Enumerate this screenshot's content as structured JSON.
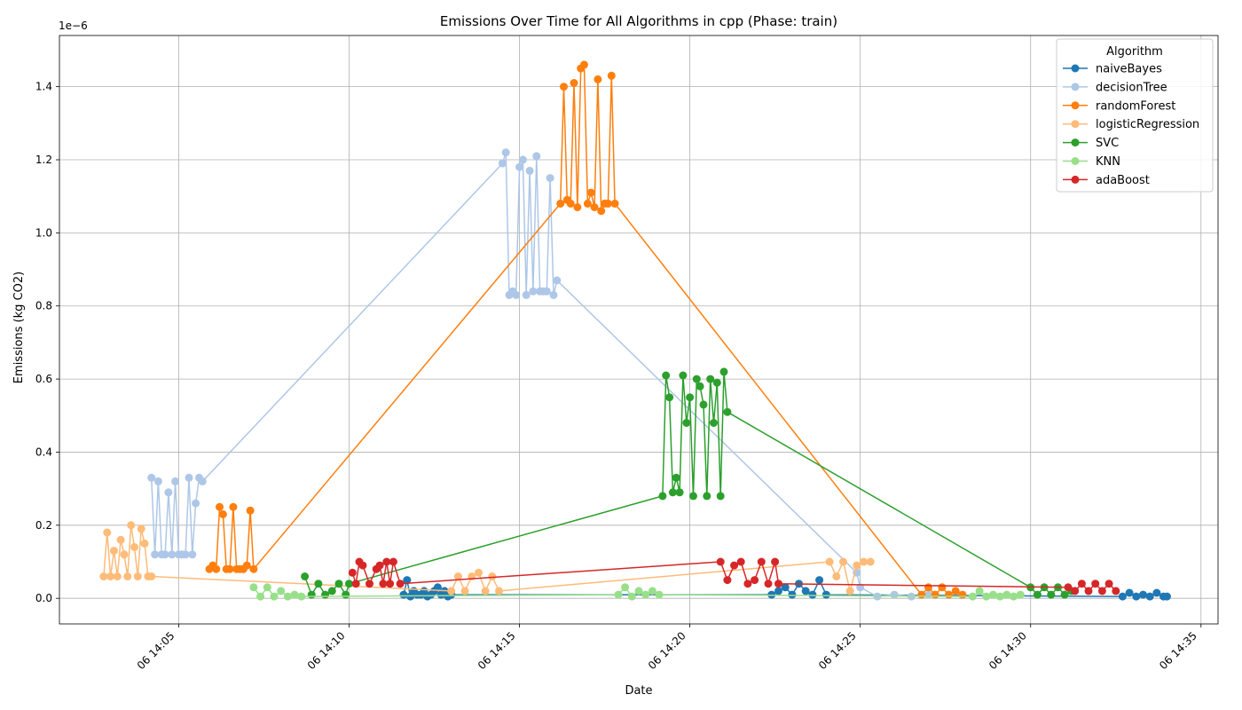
{
  "chart_data": {
    "type": "line",
    "title": "Emissions Over Time for All Algorithms in cpp (Phase: train)",
    "xlabel": "Date",
    "ylabel": "Emissions (kg CO2)",
    "y_multiplier_label": "1e−6",
    "y_unit_scale": 1e-06,
    "xlim": [
      "06 14:01:30",
      "06 14:35:30"
    ],
    "ylim": [
      -0.07,
      1.54
    ],
    "x_ticks": [
      {
        "time": "06 14:05",
        "label": "06 14:05"
      },
      {
        "time": "06 14:10",
        "label": "06 14:10"
      },
      {
        "time": "06 14:15",
        "label": "06 14:15"
      },
      {
        "time": "06 14:20",
        "label": "06 14:20"
      },
      {
        "time": "06 14:25",
        "label": "06 14:25"
      },
      {
        "time": "06 14:30",
        "label": "06 14:30"
      },
      {
        "time": "06 14:35",
        "label": "06 14:35"
      }
    ],
    "y_ticks": [
      0.0,
      0.2,
      0.4,
      0.6,
      0.8,
      1.0,
      1.2,
      1.4
    ],
    "y_tick_labels": [
      "0.0",
      "0.2",
      "0.4",
      "0.6",
      "0.8",
      "1.0",
      "1.2",
      "1.4"
    ],
    "grid": true,
    "legend": {
      "title": "Algorithm",
      "position": "top-right"
    },
    "series": [
      {
        "name": "naiveBayes",
        "color": "#1f77b4",
        "points": [
          [
            "06 14:11:36",
            0.01
          ],
          [
            "06 14:11:42",
            0.05
          ],
          [
            "06 14:11:48",
            0.005
          ],
          [
            "06 14:11:54",
            0.02
          ],
          [
            "06 14:12:00",
            0.01
          ],
          [
            "06 14:12:06",
            0.01
          ],
          [
            "06 14:12:12",
            0.02
          ],
          [
            "06 14:12:18",
            0.005
          ],
          [
            "06 14:12:24",
            0.01
          ],
          [
            "06 14:12:30",
            0.02
          ],
          [
            "06 14:12:36",
            0.03
          ],
          [
            "06 14:12:42",
            0.01
          ],
          [
            "06 14:12:48",
            0.02
          ],
          [
            "06 14:12:54",
            0.005
          ],
          [
            "06 14:13:00",
            0.01
          ],
          [
            "06 14:22:24",
            0.01
          ],
          [
            "06 14:22:36",
            0.02
          ],
          [
            "06 14:22:48",
            0.03
          ],
          [
            "06 14:23:00",
            0.01
          ],
          [
            "06 14:23:12",
            0.04
          ],
          [
            "06 14:23:24",
            0.02
          ],
          [
            "06 14:23:36",
            0.01
          ],
          [
            "06 14:23:48",
            0.05
          ],
          [
            "06 14:24:00",
            0.01
          ],
          [
            "06 14:32:42",
            0.005
          ],
          [
            "06 14:32:54",
            0.015
          ],
          [
            "06 14:33:06",
            0.005
          ],
          [
            "06 14:33:18",
            0.01
          ],
          [
            "06 14:33:30",
            0.005
          ],
          [
            "06 14:33:42",
            0.015
          ],
          [
            "06 14:33:54",
            0.005
          ],
          [
            "06 14:34:00",
            0.005
          ]
        ]
      },
      {
        "name": "decisionTree",
        "color": "#aec7e8",
        "points": [
          [
            "06 14:04:12",
            0.33
          ],
          [
            "06 14:04:18",
            0.12
          ],
          [
            "06 14:04:24",
            0.32
          ],
          [
            "06 14:04:30",
            0.12
          ],
          [
            "06 14:04:36",
            0.12
          ],
          [
            "06 14:04:42",
            0.29
          ],
          [
            "06 14:04:48",
            0.12
          ],
          [
            "06 14:04:54",
            0.32
          ],
          [
            "06 14:05:00",
            0.12
          ],
          [
            "06 14:05:06",
            0.12
          ],
          [
            "06 14:05:12",
            0.12
          ],
          [
            "06 14:05:18",
            0.33
          ],
          [
            "06 14:05:24",
            0.12
          ],
          [
            "06 14:05:30",
            0.26
          ],
          [
            "06 14:05:36",
            0.33
          ],
          [
            "06 14:05:42",
            0.32
          ],
          [
            "06 14:14:30",
            1.19
          ],
          [
            "06 14:14:36",
            1.22
          ],
          [
            "06 14:14:42",
            0.83
          ],
          [
            "06 14:14:48",
            0.84
          ],
          [
            "06 14:14:54",
            0.83
          ],
          [
            "06 14:15:00",
            1.18
          ],
          [
            "06 14:15:06",
            1.2
          ],
          [
            "06 14:15:12",
            0.83
          ],
          [
            "06 14:15:18",
            1.17
          ],
          [
            "06 14:15:24",
            0.84
          ],
          [
            "06 14:15:30",
            1.21
          ],
          [
            "06 14:15:36",
            0.84
          ],
          [
            "06 14:15:42",
            0.84
          ],
          [
            "06 14:15:48",
            0.84
          ],
          [
            "06 14:15:54",
            1.15
          ],
          [
            "06 14:16:00",
            0.83
          ],
          [
            "06 14:16:06",
            0.87
          ],
          [
            "06 14:24:54",
            0.07
          ],
          [
            "06 14:25:00",
            0.03
          ],
          [
            "06 14:25:30",
            0.005
          ],
          [
            "06 14:26:00",
            0.01
          ],
          [
            "06 14:26:30",
            0.005
          ],
          [
            "06 14:27:00",
            0.01
          ]
        ]
      },
      {
        "name": "randomForest",
        "color": "#ff7f0e",
        "points": [
          [
            "06 14:05:54",
            0.08
          ],
          [
            "06 14:06:00",
            0.09
          ],
          [
            "06 14:06:06",
            0.08
          ],
          [
            "06 14:06:12",
            0.25
          ],
          [
            "06 14:06:18",
            0.23
          ],
          [
            "06 14:06:24",
            0.08
          ],
          [
            "06 14:06:30",
            0.08
          ],
          [
            "06 14:06:36",
            0.25
          ],
          [
            "06 14:06:42",
            0.08
          ],
          [
            "06 14:06:48",
            0.08
          ],
          [
            "06 14:06:54",
            0.08
          ],
          [
            "06 14:07:00",
            0.09
          ],
          [
            "06 14:07:06",
            0.24
          ],
          [
            "06 14:07:12",
            0.08
          ],
          [
            "06 14:16:12",
            1.08
          ],
          [
            "06 14:16:18",
            1.4
          ],
          [
            "06 14:16:24",
            1.09
          ],
          [
            "06 14:16:30",
            1.08
          ],
          [
            "06 14:16:36",
            1.41
          ],
          [
            "06 14:16:42",
            1.07
          ],
          [
            "06 14:16:48",
            1.45
          ],
          [
            "06 14:16:54",
            1.46
          ],
          [
            "06 14:17:00",
            1.08
          ],
          [
            "06 14:17:06",
            1.11
          ],
          [
            "06 14:17:12",
            1.07
          ],
          [
            "06 14:17:18",
            1.42
          ],
          [
            "06 14:17:24",
            1.06
          ],
          [
            "06 14:17:30",
            1.08
          ],
          [
            "06 14:17:36",
            1.08
          ],
          [
            "06 14:17:42",
            1.43
          ],
          [
            "06 14:17:48",
            1.08
          ],
          [
            "06 14:26:48",
            0.01
          ],
          [
            "06 14:27:00",
            0.03
          ],
          [
            "06 14:27:12",
            0.01
          ],
          [
            "06 14:27:24",
            0.03
          ],
          [
            "06 14:27:36",
            0.01
          ],
          [
            "06 14:27:48",
            0.02
          ],
          [
            "06 14:28:00",
            0.01
          ]
        ]
      },
      {
        "name": "logisticRegression",
        "color": "#ffbb78",
        "points": [
          [
            "06 14:02:48",
            0.06
          ],
          [
            "06 14:02:54",
            0.18
          ],
          [
            "06 14:03:00",
            0.06
          ],
          [
            "06 14:03:06",
            0.13
          ],
          [
            "06 14:03:12",
            0.06
          ],
          [
            "06 14:03:18",
            0.16
          ],
          [
            "06 14:03:24",
            0.12
          ],
          [
            "06 14:03:30",
            0.06
          ],
          [
            "06 14:03:36",
            0.2
          ],
          [
            "06 14:03:42",
            0.14
          ],
          [
            "06 14:03:48",
            0.06
          ],
          [
            "06 14:03:54",
            0.19
          ],
          [
            "06 14:04:00",
            0.15
          ],
          [
            "06 14:04:06",
            0.06
          ],
          [
            "06 14:04:12",
            0.06
          ],
          [
            "06 14:13:00",
            0.02
          ],
          [
            "06 14:13:12",
            0.06
          ],
          [
            "06 14:13:24",
            0.02
          ],
          [
            "06 14:13:36",
            0.06
          ],
          [
            "06 14:13:48",
            0.07
          ],
          [
            "06 14:14:00",
            0.02
          ],
          [
            "06 14:14:12",
            0.06
          ],
          [
            "06 14:14:24",
            0.02
          ],
          [
            "06 14:24:06",
            0.1
          ],
          [
            "06 14:24:18",
            0.06
          ],
          [
            "06 14:24:30",
            0.1
          ],
          [
            "06 14:24:42",
            0.02
          ],
          [
            "06 14:24:54",
            0.09
          ],
          [
            "06 14:25:06",
            0.1
          ],
          [
            "06 14:25:18",
            0.1
          ]
        ]
      },
      {
        "name": "SVC",
        "color": "#2ca02c",
        "points": [
          [
            "06 14:08:42",
            0.06
          ],
          [
            "06 14:08:54",
            0.01
          ],
          [
            "06 14:09:06",
            0.04
          ],
          [
            "06 14:09:18",
            0.01
          ],
          [
            "06 14:09:30",
            0.02
          ],
          [
            "06 14:09:42",
            0.04
          ],
          [
            "06 14:09:54",
            0.01
          ],
          [
            "06 14:10:00",
            0.04
          ],
          [
            "06 14:19:12",
            0.28
          ],
          [
            "06 14:19:18",
            0.61
          ],
          [
            "06 14:19:24",
            0.55
          ],
          [
            "06 14:19:30",
            0.29
          ],
          [
            "06 14:19:36",
            0.33
          ],
          [
            "06 14:19:42",
            0.29
          ],
          [
            "06 14:19:48",
            0.61
          ],
          [
            "06 14:19:54",
            0.48
          ],
          [
            "06 14:20:00",
            0.55
          ],
          [
            "06 14:20:06",
            0.28
          ],
          [
            "06 14:20:12",
            0.6
          ],
          [
            "06 14:20:18",
            0.58
          ],
          [
            "06 14:20:24",
            0.53
          ],
          [
            "06 14:20:30",
            0.28
          ],
          [
            "06 14:20:36",
            0.6
          ],
          [
            "06 14:20:42",
            0.48
          ],
          [
            "06 14:20:48",
            0.59
          ],
          [
            "06 14:20:54",
            0.28
          ],
          [
            "06 14:21:00",
            0.62
          ],
          [
            "06 14:21:06",
            0.51
          ],
          [
            "06 14:30:00",
            0.03
          ],
          [
            "06 14:30:12",
            0.01
          ],
          [
            "06 14:30:24",
            0.03
          ],
          [
            "06 14:30:36",
            0.01
          ],
          [
            "06 14:30:48",
            0.03
          ],
          [
            "06 14:31:00",
            0.01
          ],
          [
            "06 14:31:12",
            0.02
          ]
        ]
      },
      {
        "name": "KNN",
        "color": "#98df8a",
        "points": [
          [
            "06 14:07:12",
            0.03
          ],
          [
            "06 14:07:24",
            0.005
          ],
          [
            "06 14:07:36",
            0.03
          ],
          [
            "06 14:07:48",
            0.005
          ],
          [
            "06 14:08:00",
            0.02
          ],
          [
            "06 14:08:12",
            0.005
          ],
          [
            "06 14:08:24",
            0.01
          ],
          [
            "06 14:08:36",
            0.005
          ],
          [
            "06 14:17:54",
            0.01
          ],
          [
            "06 14:18:06",
            0.03
          ],
          [
            "06 14:18:18",
            0.005
          ],
          [
            "06 14:18:30",
            0.02
          ],
          [
            "06 14:18:42",
            0.01
          ],
          [
            "06 14:18:54",
            0.02
          ],
          [
            "06 14:19:06",
            0.01
          ],
          [
            "06 14:28:18",
            0.005
          ],
          [
            "06 14:28:30",
            0.02
          ],
          [
            "06 14:28:42",
            0.005
          ],
          [
            "06 14:28:54",
            0.01
          ],
          [
            "06 14:29:06",
            0.005
          ],
          [
            "06 14:29:18",
            0.01
          ],
          [
            "06 14:29:30",
            0.005
          ],
          [
            "06 14:29:42",
            0.01
          ]
        ]
      },
      {
        "name": "adaBoost",
        "color": "#d62728",
        "points": [
          [
            "06 14:10:06",
            0.07
          ],
          [
            "06 14:10:12",
            0.04
          ],
          [
            "06 14:10:18",
            0.1
          ],
          [
            "06 14:10:24",
            0.09
          ],
          [
            "06 14:10:36",
            0.04
          ],
          [
            "06 14:10:48",
            0.08
          ],
          [
            "06 14:10:54",
            0.09
          ],
          [
            "06 14:11:00",
            0.04
          ],
          [
            "06 14:11:06",
            0.1
          ],
          [
            "06 14:11:12",
            0.04
          ],
          [
            "06 14:11:18",
            0.1
          ],
          [
            "06 14:11:30",
            0.04
          ],
          [
            "06 14:20:54",
            0.1
          ],
          [
            "06 14:21:06",
            0.05
          ],
          [
            "06 14:21:18",
            0.09
          ],
          [
            "06 14:21:30",
            0.1
          ],
          [
            "06 14:21:42",
            0.04
          ],
          [
            "06 14:21:54",
            0.05
          ],
          [
            "06 14:22:06",
            0.1
          ],
          [
            "06 14:22:18",
            0.04
          ],
          [
            "06 14:22:30",
            0.1
          ],
          [
            "06 14:22:36",
            0.04
          ],
          [
            "06 14:31:06",
            0.03
          ],
          [
            "06 14:31:18",
            0.02
          ],
          [
            "06 14:31:30",
            0.04
          ],
          [
            "06 14:31:42",
            0.02
          ],
          [
            "06 14:31:54",
            0.04
          ],
          [
            "06 14:32:06",
            0.02
          ],
          [
            "06 14:32:18",
            0.04
          ],
          [
            "06 14:32:30",
            0.02
          ]
        ]
      }
    ]
  }
}
